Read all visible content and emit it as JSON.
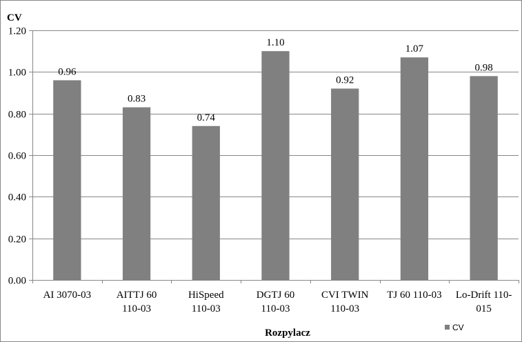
{
  "chart_data": {
    "type": "bar",
    "categories": [
      [
        "AI 3070-03"
      ],
      [
        "AITTJ  60",
        "110-03"
      ],
      [
        "HiSpeed",
        "110-03"
      ],
      [
        "DGTJ 60",
        "110-03"
      ],
      [
        "CVI TWIN",
        "110-03"
      ],
      [
        "TJ 60 110-03"
      ],
      [
        "Lo-Drift 110-",
        "015"
      ]
    ],
    "series": [
      {
        "name": "CV",
        "values": [
          0.96,
          0.83,
          0.74,
          1.1,
          0.92,
          1.07,
          0.98
        ],
        "labels": [
          "0.96",
          "0.83",
          "0.74",
          "1.10",
          "0.92",
          "1.07",
          "0.98"
        ],
        "color": "#808080"
      }
    ],
    "ylabel": "CV",
    "xlabel": "Rozpylacz",
    "ylim": [
      0,
      1.2
    ],
    "yticks": [
      "0.00",
      "0.20",
      "0.40",
      "0.60",
      "0.80",
      "1.00",
      "1.20"
    ],
    "grid": true,
    "legend": "bottom-right",
    "gridline_color": "#868686",
    "axis_color": "#868686"
  }
}
